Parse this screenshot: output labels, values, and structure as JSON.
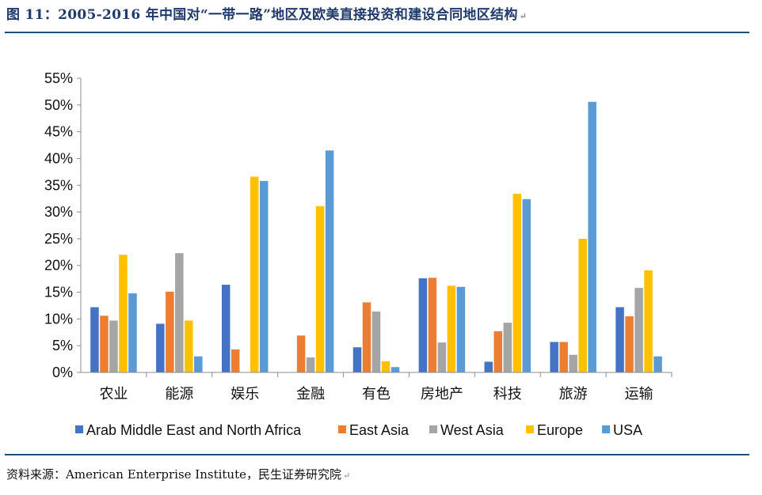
{
  "header": {
    "title": "图 11：2005-2016 年中国对“一带一路”地区及欧美直接投资和建设合同地区结构"
  },
  "footer": {
    "source_label": "资料来源：",
    "source_text": "American Enterprise Institute，民生证券研究院"
  },
  "chart_data": {
    "type": "bar",
    "title": "",
    "xlabel": "",
    "ylabel": "",
    "ylim": [
      0,
      55
    ],
    "yticks": [
      "0%",
      "5%",
      "10%",
      "15%",
      "20%",
      "25%",
      "30%",
      "35%",
      "40%",
      "45%",
      "50%",
      "55%"
    ],
    "categories": [
      "农业",
      "能源",
      "娱乐",
      "金融",
      "有色",
      "房地产",
      "科技",
      "旅游",
      "运输"
    ],
    "series": [
      {
        "name": "Arab Middle East and North Africa",
        "color": "#4472c4",
        "values": [
          12.2,
          9.1,
          16.4,
          0,
          4.7,
          17.6,
          2.0,
          5.7,
          12.2
        ]
      },
      {
        "name": "East Asia",
        "color": "#ed7d31",
        "values": [
          10.6,
          15.1,
          4.3,
          6.9,
          13.1,
          17.7,
          7.7,
          5.7,
          10.5
        ]
      },
      {
        "name": "West Asia",
        "color": "#a5a5a5",
        "values": [
          9.7,
          22.3,
          0,
          2.8,
          11.4,
          5.6,
          9.3,
          3.3,
          15.8
        ]
      },
      {
        "name": "Europe",
        "color": "#ffc000",
        "values": [
          22.0,
          9.7,
          36.6,
          31.1,
          2.1,
          16.2,
          33.4,
          25.0,
          19.1
        ]
      },
      {
        "name": "USA",
        "color": "#5b9bd5",
        "values": [
          14.8,
          3.0,
          35.8,
          41.5,
          1.0,
          16.0,
          32.4,
          50.6,
          3.0
        ]
      }
    ],
    "legend_position": "bottom"
  }
}
